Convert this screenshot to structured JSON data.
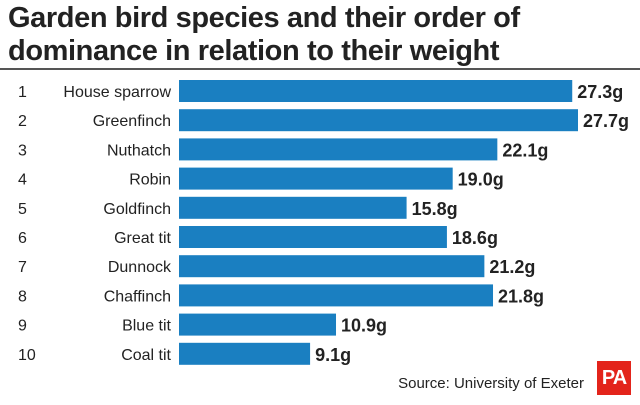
{
  "chart_data": {
    "type": "bar",
    "orientation": "horizontal",
    "title": "Garden bird species and their order of dominance in relation to their weight",
    "ranks": [
      "1",
      "2",
      "3",
      "4",
      "5",
      "6",
      "7",
      "8",
      "9",
      "10"
    ],
    "categories": [
      "House sparrow",
      "Greenfinch",
      "Nuthatch",
      "Robin",
      "Goldfinch",
      "Great tit",
      "Dunnock",
      "Chaffinch",
      "Blue tit",
      "Coal tit"
    ],
    "values": [
      27.3,
      27.7,
      22.1,
      19.0,
      15.8,
      18.6,
      21.2,
      21.8,
      10.9,
      9.1
    ],
    "value_labels": [
      "27.3g",
      "27.7g",
      "22.1g",
      "19.0g",
      "15.8g",
      "18.6g",
      "21.2g",
      "21.8g",
      "10.9g",
      "9.1g"
    ],
    "xlim": [
      0,
      27.7
    ],
    "grid": false,
    "bar_color": "#1a7fc1"
  },
  "source": "Source: University of Exeter",
  "logo": {
    "text": "PA",
    "color": "#e3241b"
  }
}
